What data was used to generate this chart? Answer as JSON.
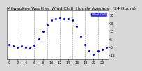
{
  "title": "Milwaukee Weather Wind Chill  Hourly Average  (24 Hours)",
  "hours": [
    0,
    1,
    2,
    3,
    4,
    5,
    6,
    7,
    8,
    9,
    10,
    11,
    12,
    13,
    14,
    15,
    16,
    17,
    18,
    19,
    20,
    21,
    22,
    23
  ],
  "wind_chill": [
    -2,
    -4,
    -5,
    -4,
    -5,
    -6,
    -3,
    5,
    14,
    22,
    28,
    30,
    31,
    30,
    30,
    28,
    20,
    8,
    -2,
    -10,
    -14,
    -10,
    -8,
    -5
  ],
  "dot_color": "#0000ff",
  "bg_color": "#d8d8d8",
  "plot_bg": "#ffffff",
  "grid_color": "#888888",
  "title_color": "#000000",
  "tick_label_color": "#000000",
  "ylim": [
    -20,
    40
  ],
  "yticks": [
    35,
    25,
    15,
    5,
    -5,
    -15
  ],
  "ytick_labels": [
    "35",
    "25",
    "15",
    "5",
    "-5",
    "-15"
  ],
  "xtick_positions": [
    0,
    2,
    4,
    6,
    8,
    10,
    12,
    14,
    16,
    18,
    20,
    22
  ],
  "xtick_labels": [
    "0",
    "2",
    "4",
    "6",
    "8",
    "10",
    "12",
    "14",
    "16",
    "18",
    "20",
    "22"
  ],
  "legend_text": "Wind Chill",
  "legend_bg": "#0000cc",
  "title_fontsize": 4.5,
  "tick_fontsize": 3.5,
  "vgrid_hours": [
    3,
    6,
    9,
    12,
    15,
    18,
    21
  ]
}
